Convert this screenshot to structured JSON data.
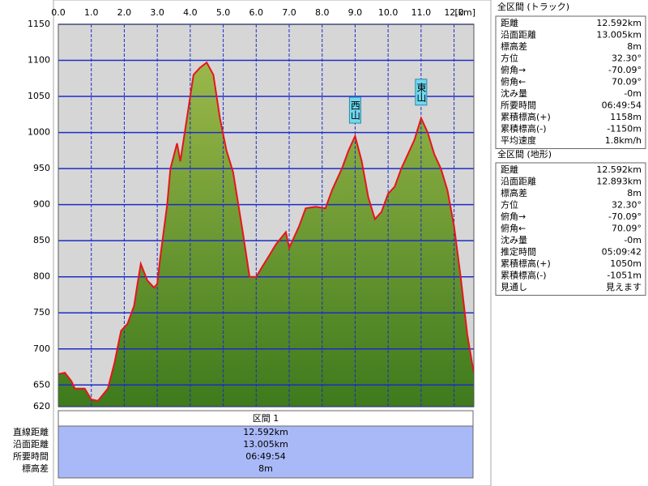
{
  "chart_data": {
    "type": "area",
    "x_label": "[km]",
    "x": [
      0,
      0.2,
      0.4,
      0.5,
      0.8,
      1.0,
      1.2,
      1.5,
      1.7,
      1.9,
      2.1,
      2.3,
      2.4,
      2.5,
      2.7,
      2.9,
      3.0,
      3.1,
      3.3,
      3.4,
      3.6,
      3.7,
      3.9,
      4.1,
      4.3,
      4.5,
      4.7,
      4.9,
      5.1,
      5.3,
      5.6,
      5.8,
      6.0,
      6.2,
      6.4,
      6.6,
      6.9,
      7.0,
      7.3,
      7.5,
      7.8,
      8.1,
      8.3,
      8.6,
      8.8,
      9.0,
      9.2,
      9.4,
      9.6,
      9.8,
      10.0,
      10.2,
      10.4,
      10.6,
      10.8,
      11.0,
      11.2,
      11.4,
      11.6,
      11.8,
      12.0,
      12.2,
      12.4,
      12.592
    ],
    "series": [
      {
        "color": "#e8141c",
        "fill": "#6e9a2e",
        "values": [
          665,
          667,
          655,
          645,
          645,
          630,
          628,
          645,
          680,
          725,
          735,
          760,
          790,
          818,
          795,
          785,
          790,
          830,
          900,
          950,
          985,
          960,
          1020,
          1080,
          1090,
          1097,
          1080,
          1020,
          975,
          945,
          860,
          800,
          800,
          815,
          830,
          845,
          862,
          840,
          870,
          895,
          897,
          895,
          920,
          950,
          975,
          995,
          960,
          910,
          880,
          890,
          915,
          925,
          950,
          970,
          990,
          1020,
          1000,
          970,
          950,
          920,
          870,
          800,
          720,
          668
        ]
      }
    ],
    "xlim": [
      0,
      12.6
    ],
    "ylim": [
      620,
      1150
    ],
    "xticks": [
      {
        "value": 0,
        "label": "0.0"
      },
      {
        "value": 1,
        "label": "1.0"
      },
      {
        "value": 2,
        "label": "2.0"
      },
      {
        "value": 3,
        "label": "3.0"
      },
      {
        "value": 4,
        "label": "4.0"
      },
      {
        "value": 5,
        "label": "5.0"
      },
      {
        "value": 6,
        "label": "6.0"
      },
      {
        "value": 7,
        "label": "7.0"
      },
      {
        "value": 8,
        "label": "8.0"
      },
      {
        "value": 9,
        "label": "9.0"
      },
      {
        "value": 10,
        "label": "10.0"
      },
      {
        "value": 11,
        "label": "11.0"
      },
      {
        "value": 12,
        "label": "12.0"
      }
    ],
    "yticks": [
      620,
      650,
      700,
      750,
      800,
      850,
      900,
      950,
      1000,
      1050,
      1100,
      1150
    ],
    "grid": true,
    "annotations": [
      {
        "text": "西山",
        "x": 9.0,
        "y": 995
      },
      {
        "text": "東山",
        "x": 11.0,
        "y": 1020
      }
    ]
  },
  "section": {
    "title": "区間 1",
    "rows": [
      [
        "直線距離",
        "12.592km"
      ],
      [
        "沿面距離",
        "13.005km"
      ],
      [
        "所要時間",
        "06:49:54"
      ],
      [
        "標高差",
        "8m"
      ]
    ]
  },
  "track": {
    "title": "全区間 (トラック)",
    "rows": [
      [
        "距離",
        "12.592km"
      ],
      [
        "沿面距離",
        "13.005km"
      ],
      [
        "標高差",
        "8m"
      ],
      [
        "方位",
        "32.30°"
      ],
      [
        "俯角→",
        "-70.09°"
      ],
      [
        "俯角←",
        "70.09°"
      ],
      [
        "沈み量",
        "-0m"
      ],
      [
        "所要時間",
        "06:49:54"
      ],
      [
        "累積標高(+)",
        "1158m"
      ],
      [
        "累積標高(-)",
        "-1150m"
      ],
      [
        "平均速度",
        "1.8km/h"
      ]
    ]
  },
  "terrain": {
    "title": "全区間 (地形)",
    "rows": [
      [
        "距離",
        "12.592km"
      ],
      [
        "沿面距離",
        "12.893km"
      ],
      [
        "標高差",
        "8m"
      ],
      [
        "方位",
        "32.30°"
      ],
      [
        "俯角→",
        "-70.09°"
      ],
      [
        "俯角←",
        "70.09°"
      ],
      [
        "沈み量",
        "-0m"
      ],
      [
        "推定時間",
        "05:09:42"
      ],
      [
        "累積標高(+)",
        "1050m"
      ],
      [
        "累積標高(-)",
        "-1051m"
      ],
      [
        "見通し",
        "見えます"
      ]
    ]
  }
}
